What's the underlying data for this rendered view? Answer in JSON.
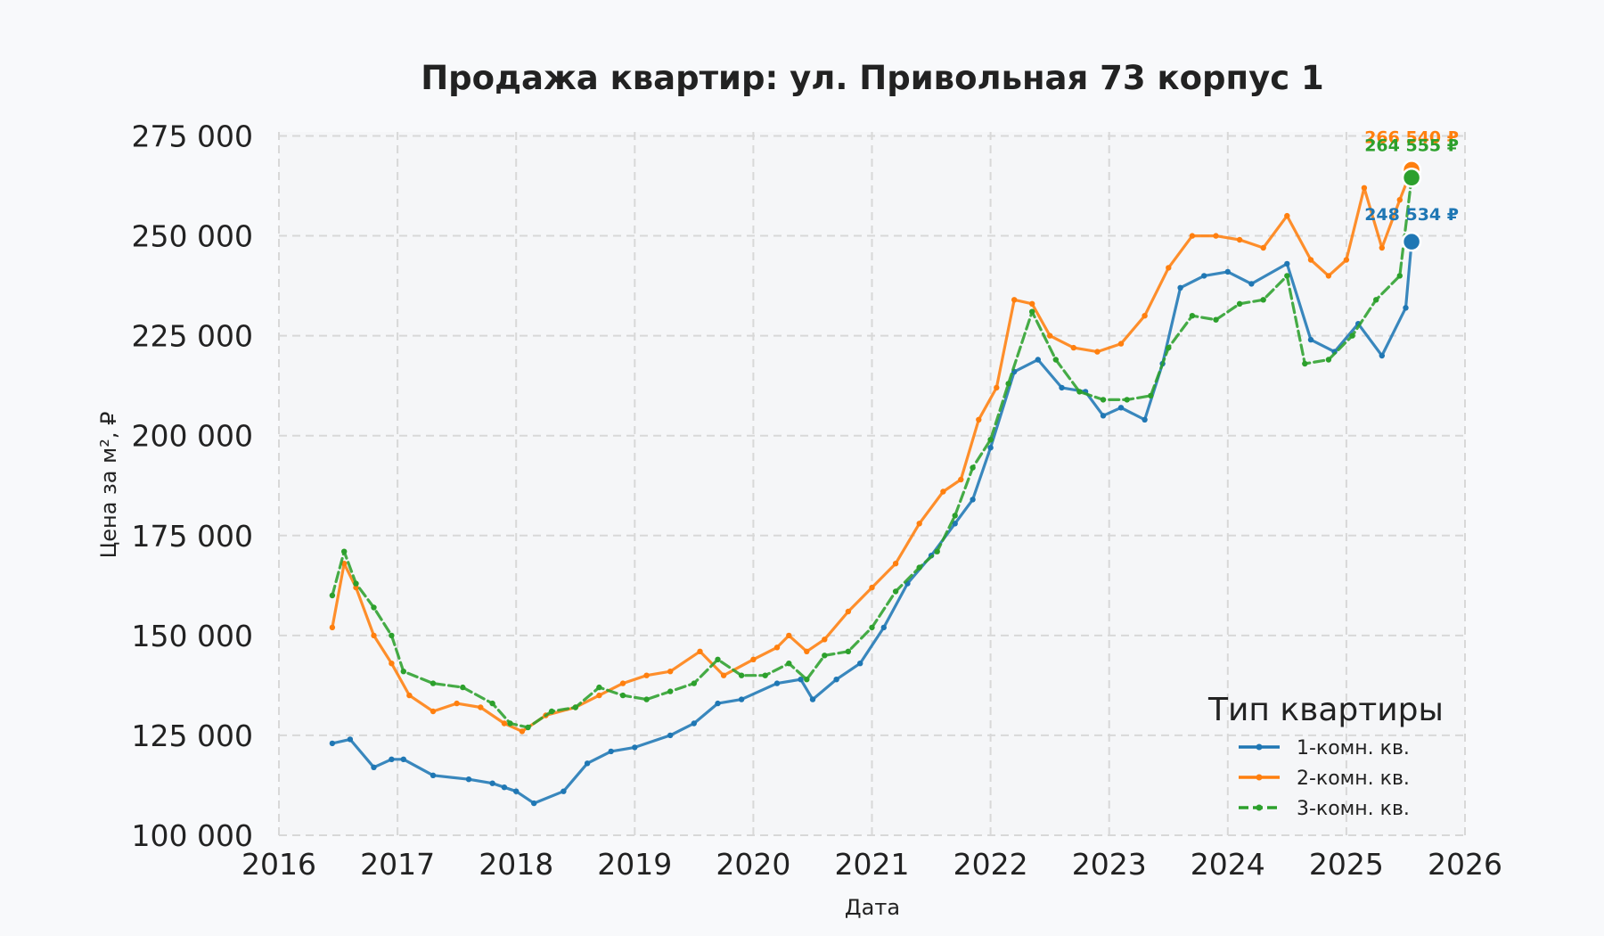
{
  "chart_data": {
    "type": "line",
    "title": "Продажа квартир: ул. Привольная 73 корпус 1",
    "xlabel": "Дата",
    "ylabel": "Цена за м², ₽",
    "xlim": [
      2016.0,
      2026.0
    ],
    "ylim": [
      100000,
      276000
    ],
    "x_ticks": [
      "2016",
      "2017",
      "2018",
      "2019",
      "2020",
      "2021",
      "2022",
      "2023",
      "2024",
      "2025",
      "2026"
    ],
    "y_ticks": [
      "100 000",
      "125 000",
      "150 000",
      "175 000",
      "200 000",
      "225 000",
      "250 000",
      "275 000"
    ],
    "grid": true,
    "legend": {
      "title": "Тип квартиры",
      "placement": "bottom-right"
    },
    "series": [
      {
        "name": "1-комн. кв.",
        "color": "#1f77b4",
        "style": "solid",
        "x": [
          2016.45,
          2016.6,
          2016.8,
          2016.95,
          2017.05,
          2017.3,
          2017.6,
          2017.8,
          2017.9,
          2018.0,
          2018.15,
          2018.4,
          2018.6,
          2018.8,
          2019.0,
          2019.3,
          2019.5,
          2019.7,
          2019.9,
          2020.2,
          2020.4,
          2020.5,
          2020.7,
          2020.9,
          2021.1,
          2021.3,
          2021.5,
          2021.7,
          2021.85,
          2022.0,
          2022.2,
          2022.4,
          2022.6,
          2022.8,
          2022.95,
          2023.1,
          2023.3,
          2023.45,
          2023.6,
          2023.8,
          2024.0,
          2024.2,
          2024.5,
          2024.7,
          2024.9,
          2025.1,
          2025.3,
          2025.5,
          2025.55
        ],
        "y": [
          123000,
          124000,
          117000,
          119000,
          119000,
          115000,
          114000,
          113000,
          112000,
          111000,
          108000,
          111000,
          118000,
          121000,
          122000,
          125000,
          128000,
          133000,
          134000,
          138000,
          139000,
          134000,
          139000,
          143000,
          152000,
          163000,
          170000,
          178000,
          184000,
          197000,
          216000,
          219000,
          212000,
          211000,
          205000,
          207000,
          204000,
          218000,
          237000,
          240000,
          241000,
          238000,
          243000,
          224000,
          221000,
          228000,
          220000,
          232000,
          248534
        ]
      },
      {
        "name": "2-комн. кв.",
        "color": "#ff7f0e",
        "style": "solid",
        "x": [
          2016.45,
          2016.55,
          2016.65,
          2016.8,
          2016.95,
          2017.1,
          2017.3,
          2017.5,
          2017.7,
          2017.9,
          2018.05,
          2018.25,
          2018.5,
          2018.7,
          2018.9,
          2019.1,
          2019.3,
          2019.55,
          2019.75,
          2020.0,
          2020.2,
          2020.3,
          2020.45,
          2020.6,
          2020.8,
          2021.0,
          2021.2,
          2021.4,
          2021.6,
          2021.75,
          2021.9,
          2022.05,
          2022.2,
          2022.35,
          2022.5,
          2022.7,
          2022.9,
          2023.1,
          2023.3,
          2023.5,
          2023.7,
          2023.9,
          2024.1,
          2024.3,
          2024.5,
          2024.7,
          2024.85,
          2025.0,
          2025.15,
          2025.3,
          2025.45,
          2025.55
        ],
        "y": [
          152000,
          168000,
          162000,
          150000,
          143000,
          135000,
          131000,
          133000,
          132000,
          128000,
          126000,
          130000,
          132000,
          135000,
          138000,
          140000,
          141000,
          146000,
          140000,
          144000,
          147000,
          150000,
          146000,
          149000,
          156000,
          162000,
          168000,
          178000,
          186000,
          189000,
          204000,
          212000,
          234000,
          233000,
          225000,
          222000,
          221000,
          223000,
          230000,
          242000,
          250000,
          250000,
          249000,
          247000,
          255000,
          244000,
          240000,
          244000,
          262000,
          247000,
          259000,
          266540
        ]
      },
      {
        "name": "3-комн. кв.",
        "color": "#2ca02c",
        "style": "dashed",
        "x": [
          2016.45,
          2016.55,
          2016.65,
          2016.8,
          2016.95,
          2017.05,
          2017.3,
          2017.55,
          2017.8,
          2017.95,
          2018.1,
          2018.3,
          2018.5,
          2018.7,
          2018.9,
          2019.1,
          2019.3,
          2019.5,
          2019.7,
          2019.9,
          2020.1,
          2020.3,
          2020.45,
          2020.6,
          2020.8,
          2021.0,
          2021.2,
          2021.4,
          2021.55,
          2021.7,
          2021.85,
          2022.0,
          2022.15,
          2022.35,
          2022.55,
          2022.75,
          2022.95,
          2023.15,
          2023.35,
          2023.5,
          2023.7,
          2023.9,
          2024.1,
          2024.3,
          2024.5,
          2024.65,
          2024.85,
          2025.05,
          2025.25,
          2025.45,
          2025.55
        ],
        "y": [
          160000,
          171000,
          163000,
          157000,
          150000,
          141000,
          138000,
          137000,
          133000,
          128000,
          127000,
          131000,
          132000,
          137000,
          135000,
          134000,
          136000,
          138000,
          144000,
          140000,
          140000,
          143000,
          139000,
          145000,
          146000,
          152000,
          161000,
          167000,
          171000,
          180000,
          192000,
          199000,
          213000,
          231000,
          219000,
          211000,
          209000,
          209000,
          210000,
          222000,
          230000,
          229000,
          233000,
          234000,
          240000,
          218000,
          219000,
          225000,
          234000,
          240000,
          264555
        ]
      }
    ],
    "end_labels": [
      {
        "series": "1-комн. кв.",
        "text": "248 534 ₽",
        "value": 248534
      },
      {
        "series": "2-комн. кв.",
        "text": "266 540 ₽",
        "value": 266540
      },
      {
        "series": "3-комн. кв.",
        "text": "264 555 ₽",
        "value": 264555
      }
    ]
  }
}
